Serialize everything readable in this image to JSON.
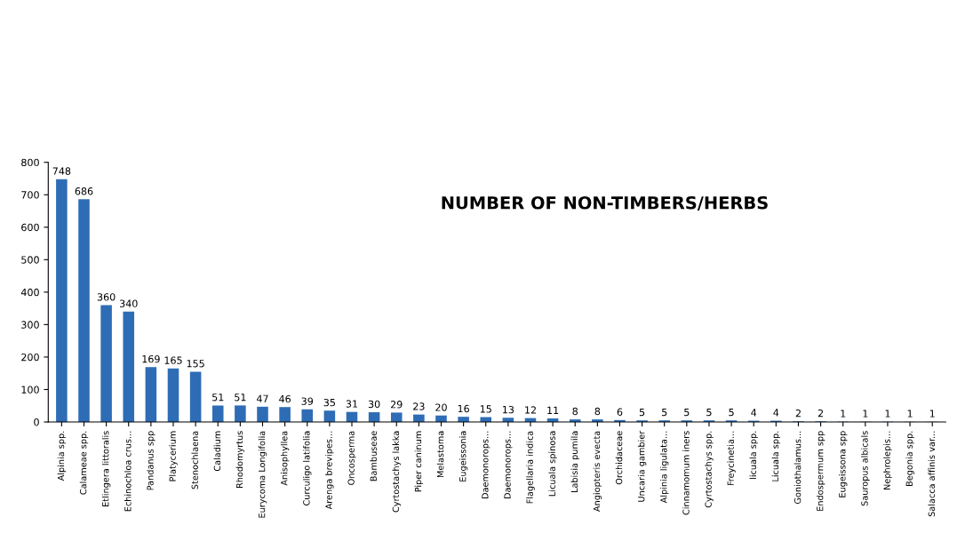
{
  "chart_data": {
    "type": "bar",
    "title": "NUMBER OF NON-TIMBERS/HERBS",
    "categories": [
      "Alpinia spp.",
      "Calameae spp.",
      "Etlingera littoralis",
      "Echinochloa crus...",
      "Pandanus spp",
      "Platycerium",
      "Stenochlaena",
      "Caladium",
      "Rhodomyrtus",
      "Eurycoma Longifolia",
      "Anisophyllea",
      "Curculigo latifolia",
      "Arenga brevipes...",
      "Oncosperma",
      "Bambuseae",
      "Cyrtostachys lakka",
      "Piper caninum",
      "Melastoma",
      "Eugeissonia",
      "Daemonorops...",
      "Daemonorops...",
      "Flagellaria indica",
      "Licuala spinosa",
      "Labisia pumila",
      "Angiopteris evecta",
      "Orchidaceae",
      "Uncaria gambier",
      "Alpinia ligulata...",
      "Cinnamomum iners",
      "Cyrtostachys spp.",
      "Freycinetia...",
      "licuala spp.",
      "Licuala spp.",
      "Goniothalamus...",
      "Endospermum spp",
      "Eugeissona spp",
      "Sauropus albicals",
      "Nephrolepis...",
      "Begonia spp.",
      "Salacca affinis var..."
    ],
    "values": [
      748,
      686,
      360,
      340,
      169,
      165,
      155,
      51,
      51,
      47,
      46,
      39,
      35,
      31,
      30,
      29,
      23,
      20,
      16,
      15,
      13,
      12,
      11,
      8,
      8,
      6,
      5,
      5,
      5,
      5,
      5,
      4,
      4,
      2,
      2,
      1,
      1,
      1,
      1,
      1
    ],
    "color": "#2e6db5",
    "data_labels": true,
    "ylim": [
      0,
      800
    ],
    "yticks": [
      0,
      100,
      200,
      300,
      400,
      500,
      600,
      700,
      800
    ],
    "grid": false,
    "legend": false
  }
}
